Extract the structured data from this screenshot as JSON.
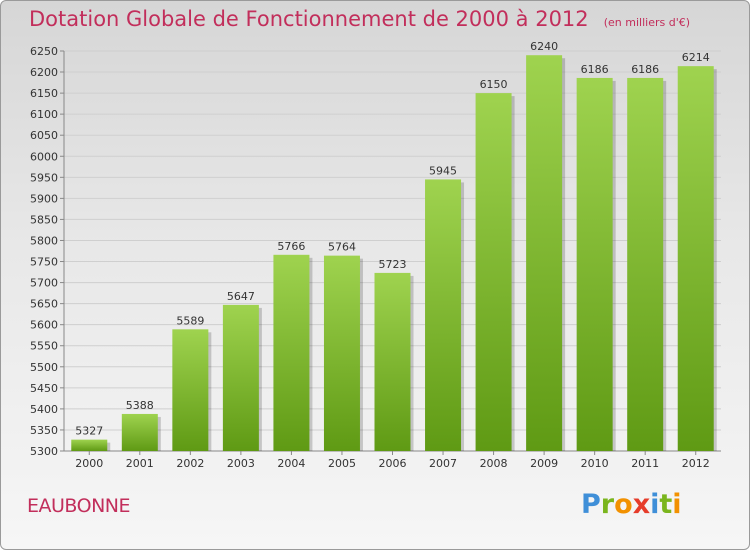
{
  "title": "Dotation Globale de Fonctionnement de 2000 à 2012",
  "subtitle": "(en milliers d'€)",
  "commune": "EAUBONNE",
  "brand": {
    "letters": [
      "P",
      "r",
      "o",
      "x",
      "i",
      "t",
      "i"
    ],
    "colors": [
      "#3f8fd8",
      "#7ab51d",
      "#f29100",
      "#e63c2a",
      "#3f8fd8",
      "#7ab51d",
      "#f29100"
    ]
  },
  "colors": {
    "title": "#c22e5b",
    "bar_top": "#9fd34f",
    "bar_bottom": "#5f9a14"
  },
  "chart_data": {
    "type": "bar",
    "title": "Dotation Globale de Fonctionnement de 2000 à 2012",
    "subtitle": "(en milliers d'€)",
    "categories": [
      "2000",
      "2001",
      "2002",
      "2003",
      "2004",
      "2005",
      "2006",
      "2007",
      "2008",
      "2009",
      "2010",
      "2011",
      "2012"
    ],
    "values": [
      5327,
      5388,
      5589,
      5647,
      5766,
      5764,
      5723,
      5945,
      6150,
      6240,
      6186,
      6186,
      6214
    ],
    "ylim": [
      5300,
      6250
    ],
    "yticks": [
      5300,
      5350,
      5400,
      5450,
      5500,
      5550,
      5600,
      5650,
      5700,
      5750,
      5800,
      5850,
      5900,
      5950,
      6000,
      6050,
      6100,
      6150,
      6200,
      6250
    ],
    "grid": true,
    "data_labels": true
  }
}
